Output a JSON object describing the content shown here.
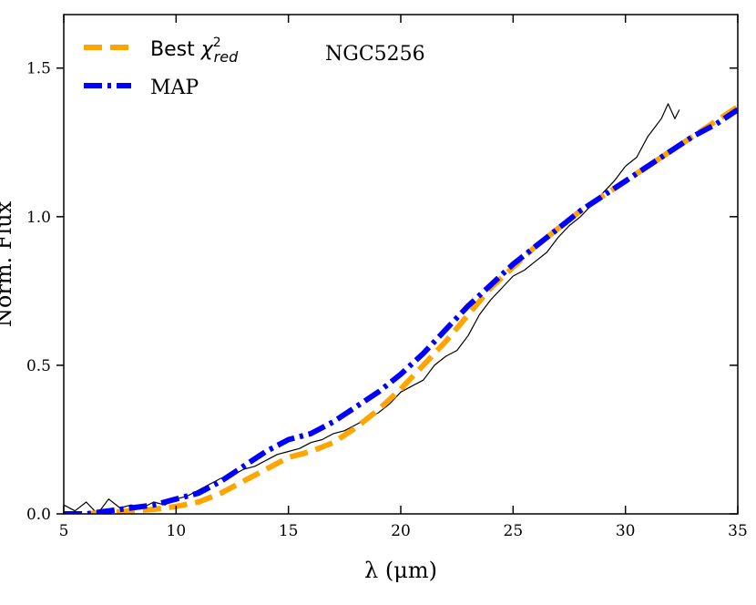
{
  "chart_data": {
    "type": "line",
    "title": "",
    "annotation": "NGC5256",
    "xlabel": "λ (μm)",
    "ylabel": "Norm. Flux",
    "xlim": [
      5,
      35
    ],
    "ylim": [
      0,
      1.68
    ],
    "xticks": [
      5,
      10,
      15,
      20,
      25,
      30,
      35
    ],
    "xtick_labels": [
      "5",
      "10",
      "15",
      "20",
      "25",
      "30",
      "35"
    ],
    "yticks": [
      0.0,
      0.5,
      1.0,
      1.5
    ],
    "ytick_labels": [
      "0.0",
      "0.5",
      "1.0",
      "1.5"
    ],
    "grid": false,
    "legend_position": "top-left",
    "series": [
      {
        "name": "Best χ²red",
        "legend_main": "Best ",
        "legend_sym": "χ",
        "legend_sup": "2",
        "legend_sub": "red",
        "color": "#ffa500",
        "style": "dashed",
        "x": [
          5,
          6,
          7,
          8,
          9,
          10,
          11,
          12,
          13,
          14,
          15,
          16,
          17,
          18,
          19,
          20,
          21,
          22,
          23,
          24,
          25,
          26,
          27,
          28,
          29,
          30,
          31,
          32,
          33,
          34,
          35
        ],
        "y": [
          0.0,
          0.0,
          0.005,
          0.01,
          0.015,
          0.025,
          0.04,
          0.07,
          0.11,
          0.15,
          0.19,
          0.21,
          0.24,
          0.29,
          0.35,
          0.42,
          0.5,
          0.58,
          0.67,
          0.76,
          0.83,
          0.9,
          0.96,
          1.02,
          1.07,
          1.12,
          1.17,
          1.22,
          1.27,
          1.32,
          1.37
        ]
      },
      {
        "name": "MAP",
        "color": "#0000ff",
        "style": "dashdot",
        "x": [
          5,
          6,
          7,
          8,
          9,
          10,
          11,
          12,
          13,
          14,
          15,
          16,
          17,
          18,
          19,
          20,
          21,
          22,
          23,
          24,
          25,
          26,
          27,
          28,
          29,
          30,
          31,
          32,
          33,
          34,
          35
        ],
        "y": [
          0.0,
          0.0,
          0.01,
          0.02,
          0.03,
          0.05,
          0.07,
          0.11,
          0.16,
          0.21,
          0.25,
          0.27,
          0.31,
          0.36,
          0.41,
          0.47,
          0.54,
          0.62,
          0.7,
          0.77,
          0.84,
          0.9,
          0.96,
          1.02,
          1.07,
          1.12,
          1.17,
          1.22,
          1.27,
          1.31,
          1.36
        ]
      },
      {
        "name": "",
        "color": "#000000",
        "style": "solid-thin",
        "x": [
          5,
          5.5,
          6,
          6.5,
          7,
          7.5,
          8,
          8.5,
          9,
          9.5,
          10,
          10.5,
          11,
          11.5,
          12,
          12.5,
          13,
          13.5,
          14,
          14.5,
          15,
          15.5,
          16,
          16.5,
          17,
          17.5,
          18,
          18.5,
          19,
          19.5,
          20,
          20.5,
          21,
          21.5,
          22,
          22.5,
          23,
          23.5,
          24,
          24.5,
          25,
          25.5,
          26,
          26.5,
          27,
          27.5,
          28,
          28.5,
          29,
          29.5,
          30,
          30.5,
          31,
          31.3,
          31.6,
          31.9,
          32.2,
          32.4
        ],
        "y": [
          0.03,
          0.01,
          0.04,
          0.0,
          0.05,
          0.02,
          0.03,
          0.02,
          0.04,
          0.03,
          0.05,
          0.06,
          0.08,
          0.1,
          0.12,
          0.13,
          0.15,
          0.16,
          0.18,
          0.2,
          0.21,
          0.22,
          0.24,
          0.25,
          0.27,
          0.28,
          0.3,
          0.32,
          0.34,
          0.37,
          0.41,
          0.43,
          0.45,
          0.5,
          0.53,
          0.55,
          0.6,
          0.67,
          0.72,
          0.76,
          0.8,
          0.82,
          0.85,
          0.88,
          0.93,
          0.97,
          1.0,
          1.04,
          1.08,
          1.12,
          1.17,
          1.2,
          1.27,
          1.3,
          1.33,
          1.38,
          1.33,
          1.36
        ]
      }
    ]
  }
}
